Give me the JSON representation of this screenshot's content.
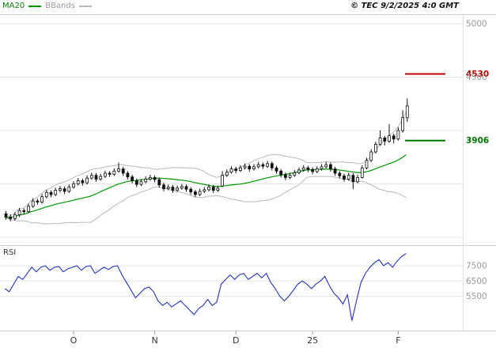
{
  "header": {
    "indicators": [
      {
        "label": "MA20",
        "color": "#008000"
      },
      {
        "label": "BBands",
        "color": "#9a9a9a"
      }
    ],
    "copyright": "© TEC 9/2/2025 4:0 GMT"
  },
  "chart_data": {
    "type": "candlestick",
    "title": "",
    "x_axis": {
      "ticks": [
        {
          "label": "O",
          "index": 15
        },
        {
          "label": "N",
          "index": 33
        },
        {
          "label": "D",
          "index": 51
        },
        {
          "label": "25",
          "index": 68
        },
        {
          "label": "F",
          "index": 87
        }
      ]
    },
    "main_panel": {
      "grid_values": [
        5000,
        4500,
        4000,
        3500,
        3000
      ],
      "y_tick_labels": [
        {
          "value": 5000,
          "label": "5000"
        },
        {
          "value": 4500,
          "label": "4500"
        }
      ],
      "levels": [
        {
          "value": 4530,
          "label": "4530",
          "color": "#bb0000"
        },
        {
          "value": 3906,
          "label": "3906",
          "color": "#007700"
        }
      ],
      "overlays": [
        {
          "name": "MA20",
          "type": "sma",
          "period": 20,
          "color": "#009900"
        },
        {
          "name": "BBands",
          "type": "bollinger",
          "period": 20,
          "stddev": 2,
          "color": "#b8b8b8"
        }
      ],
      "ohlc": [
        [
          3220,
          3245,
          3165,
          3190
        ],
        [
          3190,
          3215,
          3150,
          3175
        ],
        [
          3175,
          3235,
          3155,
          3210
        ],
        [
          3210,
          3275,
          3190,
          3250
        ],
        [
          3250,
          3270,
          3215,
          3240
        ],
        [
          3240,
          3315,
          3225,
          3290
        ],
        [
          3290,
          3365,
          3275,
          3340
        ],
        [
          3340,
          3360,
          3305,
          3330
        ],
        [
          3330,
          3405,
          3315,
          3380
        ],
        [
          3380,
          3445,
          3365,
          3420
        ],
        [
          3420,
          3440,
          3375,
          3400
        ],
        [
          3400,
          3465,
          3385,
          3440
        ],
        [
          3440,
          3480,
          3420,
          3455
        ],
        [
          3455,
          3475,
          3405,
          3430
        ],
        [
          3430,
          3495,
          3415,
          3470
        ],
        [
          3470,
          3525,
          3455,
          3500
        ],
        [
          3500,
          3555,
          3485,
          3530
        ],
        [
          3530,
          3550,
          3485,
          3510
        ],
        [
          3510,
          3580,
          3495,
          3555
        ],
        [
          3555,
          3605,
          3540,
          3580
        ],
        [
          3580,
          3600,
          3520,
          3545
        ],
        [
          3545,
          3595,
          3530,
          3570
        ],
        [
          3570,
          3625,
          3555,
          3600
        ],
        [
          3600,
          3620,
          3565,
          3590
        ],
        [
          3590,
          3645,
          3575,
          3620
        ],
        [
          3620,
          3700,
          3605,
          3640
        ],
        [
          3640,
          3660,
          3575,
          3600
        ],
        [
          3600,
          3620,
          3540,
          3565
        ],
        [
          3565,
          3585,
          3505,
          3530
        ],
        [
          3530,
          3550,
          3470,
          3495
        ],
        [
          3495,
          3545,
          3480,
          3520
        ],
        [
          3520,
          3570,
          3505,
          3545
        ],
        [
          3545,
          3585,
          3530,
          3560
        ],
        [
          3560,
          3580,
          3515,
          3540
        ],
        [
          3540,
          3560,
          3465,
          3490
        ],
        [
          3490,
          3510,
          3430,
          3455
        ],
        [
          3455,
          3495,
          3440,
          3470
        ],
        [
          3470,
          3490,
          3415,
          3440
        ],
        [
          3440,
          3485,
          3425,
          3460
        ],
        [
          3460,
          3500,
          3445,
          3475
        ],
        [
          3475,
          3495,
          3425,
          3450
        ],
        [
          3450,
          3470,
          3400,
          3425
        ],
        [
          3425,
          3445,
          3375,
          3400
        ],
        [
          3400,
          3455,
          3385,
          3430
        ],
        [
          3430,
          3470,
          3415,
          3445
        ],
        [
          3445,
          3495,
          3430,
          3470
        ],
        [
          3470,
          3490,
          3415,
          3440
        ],
        [
          3440,
          3485,
          3425,
          3460
        ],
        [
          3480,
          3620,
          3470,
          3580
        ],
        [
          3580,
          3635,
          3565,
          3610
        ],
        [
          3610,
          3665,
          3595,
          3640
        ],
        [
          3640,
          3660,
          3600,
          3625
        ],
        [
          3625,
          3675,
          3610,
          3650
        ],
        [
          3650,
          3690,
          3635,
          3665
        ],
        [
          3665,
          3685,
          3615,
          3640
        ],
        [
          3640,
          3685,
          3625,
          3660
        ],
        [
          3660,
          3705,
          3645,
          3680
        ],
        [
          3680,
          3700,
          3640,
          3665
        ],
        [
          3665,
          3715,
          3650,
          3690
        ],
        [
          3690,
          3710,
          3625,
          3650
        ],
        [
          3650,
          3670,
          3595,
          3620
        ],
        [
          3620,
          3640,
          3560,
          3585
        ],
        [
          3585,
          3605,
          3535,
          3560
        ],
        [
          3560,
          3605,
          3545,
          3580
        ],
        [
          3580,
          3630,
          3565,
          3605
        ],
        [
          3605,
          3655,
          3590,
          3630
        ],
        [
          3630,
          3675,
          3615,
          3650
        ],
        [
          3650,
          3670,
          3610,
          3635
        ],
        [
          3635,
          3655,
          3590,
          3615
        ],
        [
          3615,
          3665,
          3600,
          3640
        ],
        [
          3640,
          3685,
          3625,
          3660
        ],
        [
          3660,
          3705,
          3645,
          3680
        ],
        [
          3680,
          3700,
          3615,
          3640
        ],
        [
          3640,
          3660,
          3575,
          3600
        ],
        [
          3600,
          3620,
          3550,
          3575
        ],
        [
          3575,
          3595,
          3520,
          3545
        ],
        [
          3545,
          3605,
          3530,
          3580
        ],
        [
          3580,
          3600,
          3450,
          3520
        ],
        [
          3520,
          3585,
          3505,
          3560
        ],
        [
          3560,
          3675,
          3550,
          3650
        ],
        [
          3650,
          3745,
          3635,
          3720
        ],
        [
          3720,
          3825,
          3705,
          3800
        ],
        [
          3800,
          3895,
          3785,
          3870
        ],
        [
          3870,
          4000,
          3855,
          3930
        ],
        [
          3930,
          3950,
          3860,
          3900
        ],
        [
          3900,
          4060,
          3885,
          3950
        ],
        [
          3950,
          3970,
          3880,
          3920
        ],
        [
          3920,
          4030,
          3905,
          4000
        ],
        [
          4000,
          4190,
          3980,
          4120
        ],
        [
          4120,
          4300,
          4080,
          4230
        ]
      ]
    },
    "rsi_panel": {
      "label": "RSI",
      "color": "#2233bb",
      "y_ticks": [
        7500,
        6500,
        5500
      ],
      "values": [
        6000,
        5800,
        6300,
        6800,
        6600,
        7000,
        7400,
        7100,
        7400,
        7500,
        7200,
        7400,
        7450,
        7100,
        7300,
        7400,
        7500,
        7200,
        7450,
        7500,
        7000,
        7200,
        7400,
        7250,
        7450,
        7500,
        6900,
        6400,
        5900,
        5400,
        5700,
        6000,
        6100,
        5800,
        5200,
        4900,
        5100,
        4800,
        5000,
        5200,
        4900,
        4600,
        4300,
        4700,
        4900,
        5300,
        4900,
        5100,
        6300,
        6600,
        6900,
        6600,
        6900,
        7000,
        6600,
        6800,
        7000,
        6700,
        7000,
        6400,
        6000,
        5500,
        5200,
        5500,
        5900,
        6300,
        6500,
        6300,
        6000,
        6300,
        6500,
        6800,
        6200,
        5700,
        5400,
        5000,
        5600,
        3900,
        5200,
        6400,
        7000,
        7400,
        7700,
        7900,
        7500,
        7700,
        7400,
        7800,
        8100,
        8300
      ]
    }
  }
}
